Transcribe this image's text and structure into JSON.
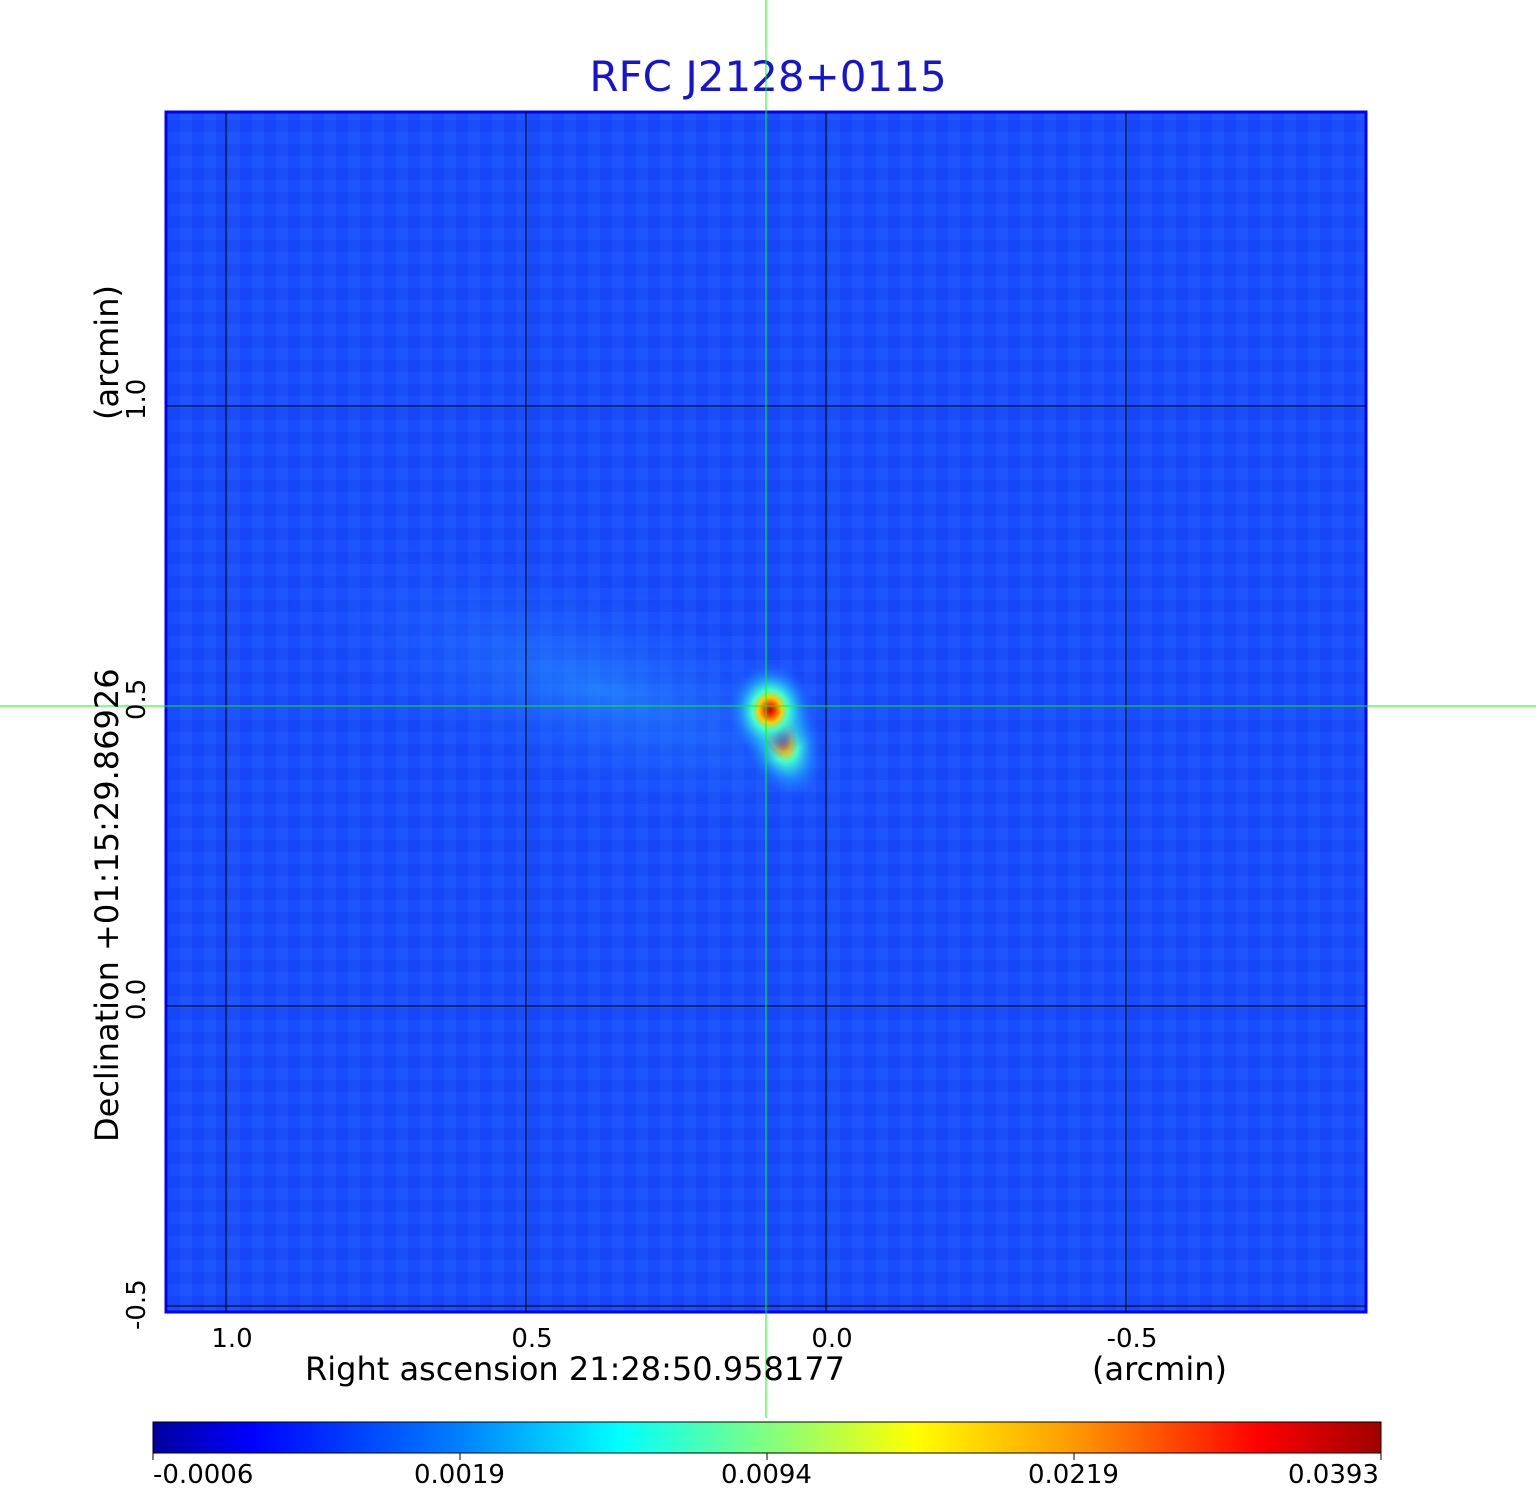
{
  "chart_data": {
    "type": "heatmap",
    "title": "RFC J2128+0115",
    "xlabel": "Right ascension  21:28:50.958177",
    "xunit": "(arcmin)",
    "ylabel": "Declination  +01:15:29.86926",
    "yunit": "(arcmin)",
    "xticks": [
      "1.0",
      "0.5",
      "0.0",
      "-0.5"
    ],
    "yticks": [
      "1.0",
      "0.5",
      "0.0",
      "-0.5"
    ],
    "xlim": [
      1.1,
      -0.9
    ],
    "ylim": [
      -0.51,
      1.49
    ],
    "grid": true,
    "crosshair": {
      "x": 0.1,
      "y": 0.5
    },
    "source_peak": {
      "x": 0.09,
      "y": 0.5,
      "value": 0.0393
    },
    "colorbar": {
      "scale": "nonlinear",
      "ticks": [
        "-0.0006",
        "0.0019",
        "0.0094",
        "0.0219",
        "0.0393"
      ],
      "colormap": [
        "#00008b",
        "#0000ff",
        "#00bfff",
        "#00ffff",
        "#90ee90",
        "#ffff00",
        "#ffa500",
        "#ff0000",
        "#b00000"
      ]
    }
  },
  "colors": {
    "title": "#1414d2",
    "background_map": "#1a4cff",
    "crosshair": "#00ff00",
    "grid": "#000000"
  }
}
